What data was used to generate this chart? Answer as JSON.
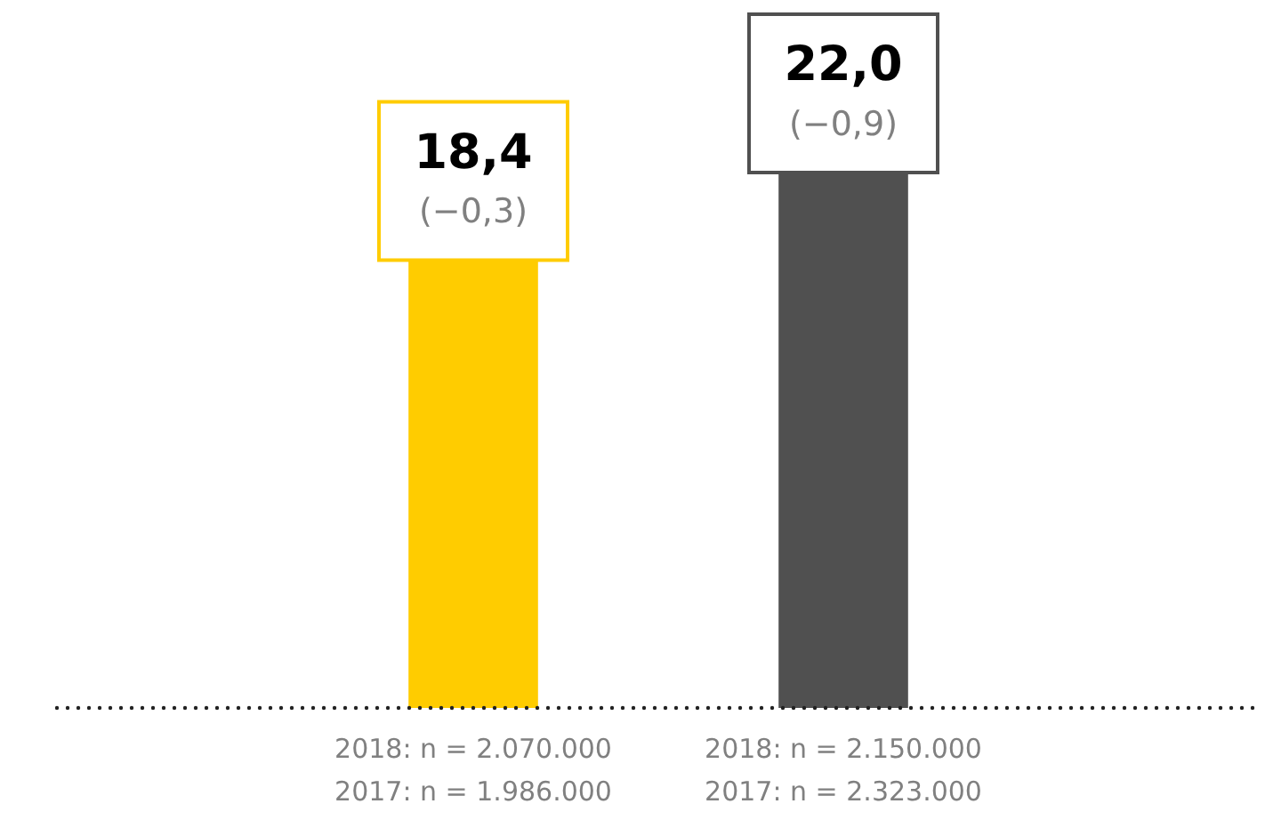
{
  "chart_data": {
    "type": "bar",
    "categories": [
      "2018: n = 2.070.000\n2017: n = 1.986.000",
      "2018: n = 2.150.000\n2017: n = 2.323.000"
    ],
    "values": [
      18.4,
      22.0
    ],
    "colors": [
      "#ffcc00",
      "#505050"
    ],
    "ylim": [
      0,
      22
    ],
    "value_labels": [
      "18,4",
      "22,0"
    ],
    "annotations": [
      {
        "text": "(−0,3)",
        "x": "2018: n = 2.070.000\n2017: n = 1.986.000",
        "y": 18.4
      },
      {
        "text": "(−0,9)",
        "x": "2018: n = 2.150.000\n2017: n = 2.323.000",
        "y": 22.0
      }
    ],
    "grid": false,
    "legend": false,
    "tick_labels": "x"
  }
}
